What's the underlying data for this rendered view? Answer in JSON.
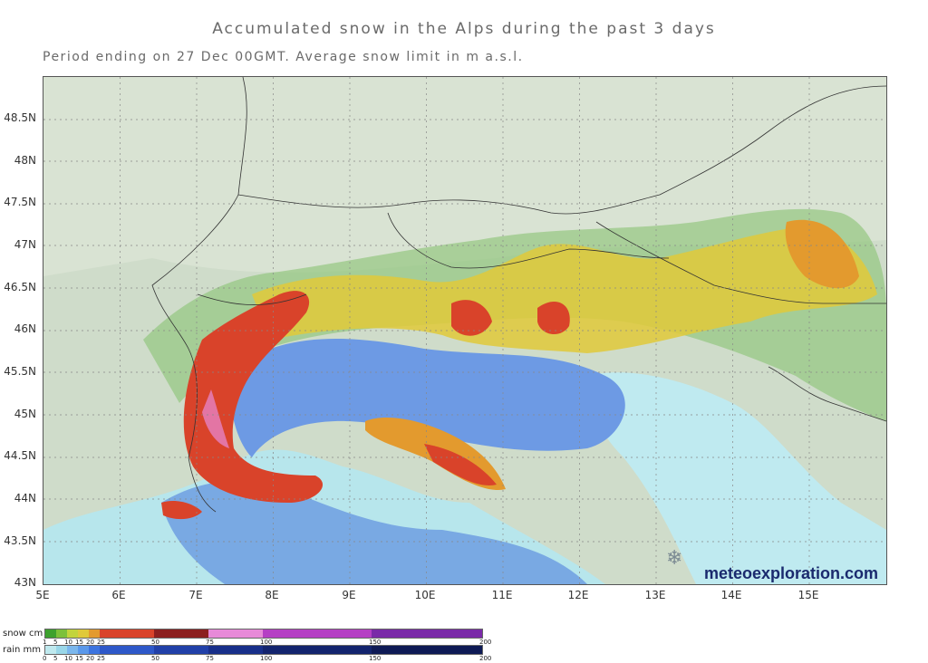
{
  "title": "Accumulated snow in the Alps during the past 3 days",
  "subtitle": "Period ending on 27 Dec 00GMT.  Average snow limit in m a.s.l.",
  "map": {
    "lat_labels": [
      "48.5N",
      "48N",
      "47.5N",
      "47N",
      "46.5N",
      "46N",
      "45.5N",
      "45N",
      "44.5N",
      "44N",
      "43.5N",
      "43N"
    ],
    "lon_labels": [
      "5E",
      "6E",
      "7E",
      "8E",
      "9E",
      "10E",
      "11E",
      "12E",
      "13E",
      "14E",
      "15E"
    ],
    "watermark": "meteoexploration.com",
    "flake_icon": "snowflake-icon"
  },
  "legend": {
    "snow": {
      "label": "snow cm",
      "ticks": [
        "1",
        "5",
        "10",
        "15",
        "20",
        "25",
        "50",
        "75",
        "100",
        "150",
        "200"
      ],
      "colors": [
        "#3da12e",
        "#7cc13a",
        "#c2d43c",
        "#e0c93a",
        "#e39a2e",
        "#d9432a",
        "#8c1f1f",
        "#e78ad8",
        "#b53fc4",
        "#7a2aa8"
      ]
    },
    "rain": {
      "label": "rain mm",
      "ticks": [
        "0",
        "5",
        "10",
        "15",
        "20",
        "25",
        "50",
        "75",
        "100",
        "150",
        "200"
      ],
      "colors": [
        "#bfe9ee",
        "#9ad7e8",
        "#7bb7ec",
        "#5a98ea",
        "#3c74df",
        "#2e58c9",
        "#2140a8",
        "#182f8a",
        "#13246e",
        "#0e1a55"
      ]
    }
  }
}
